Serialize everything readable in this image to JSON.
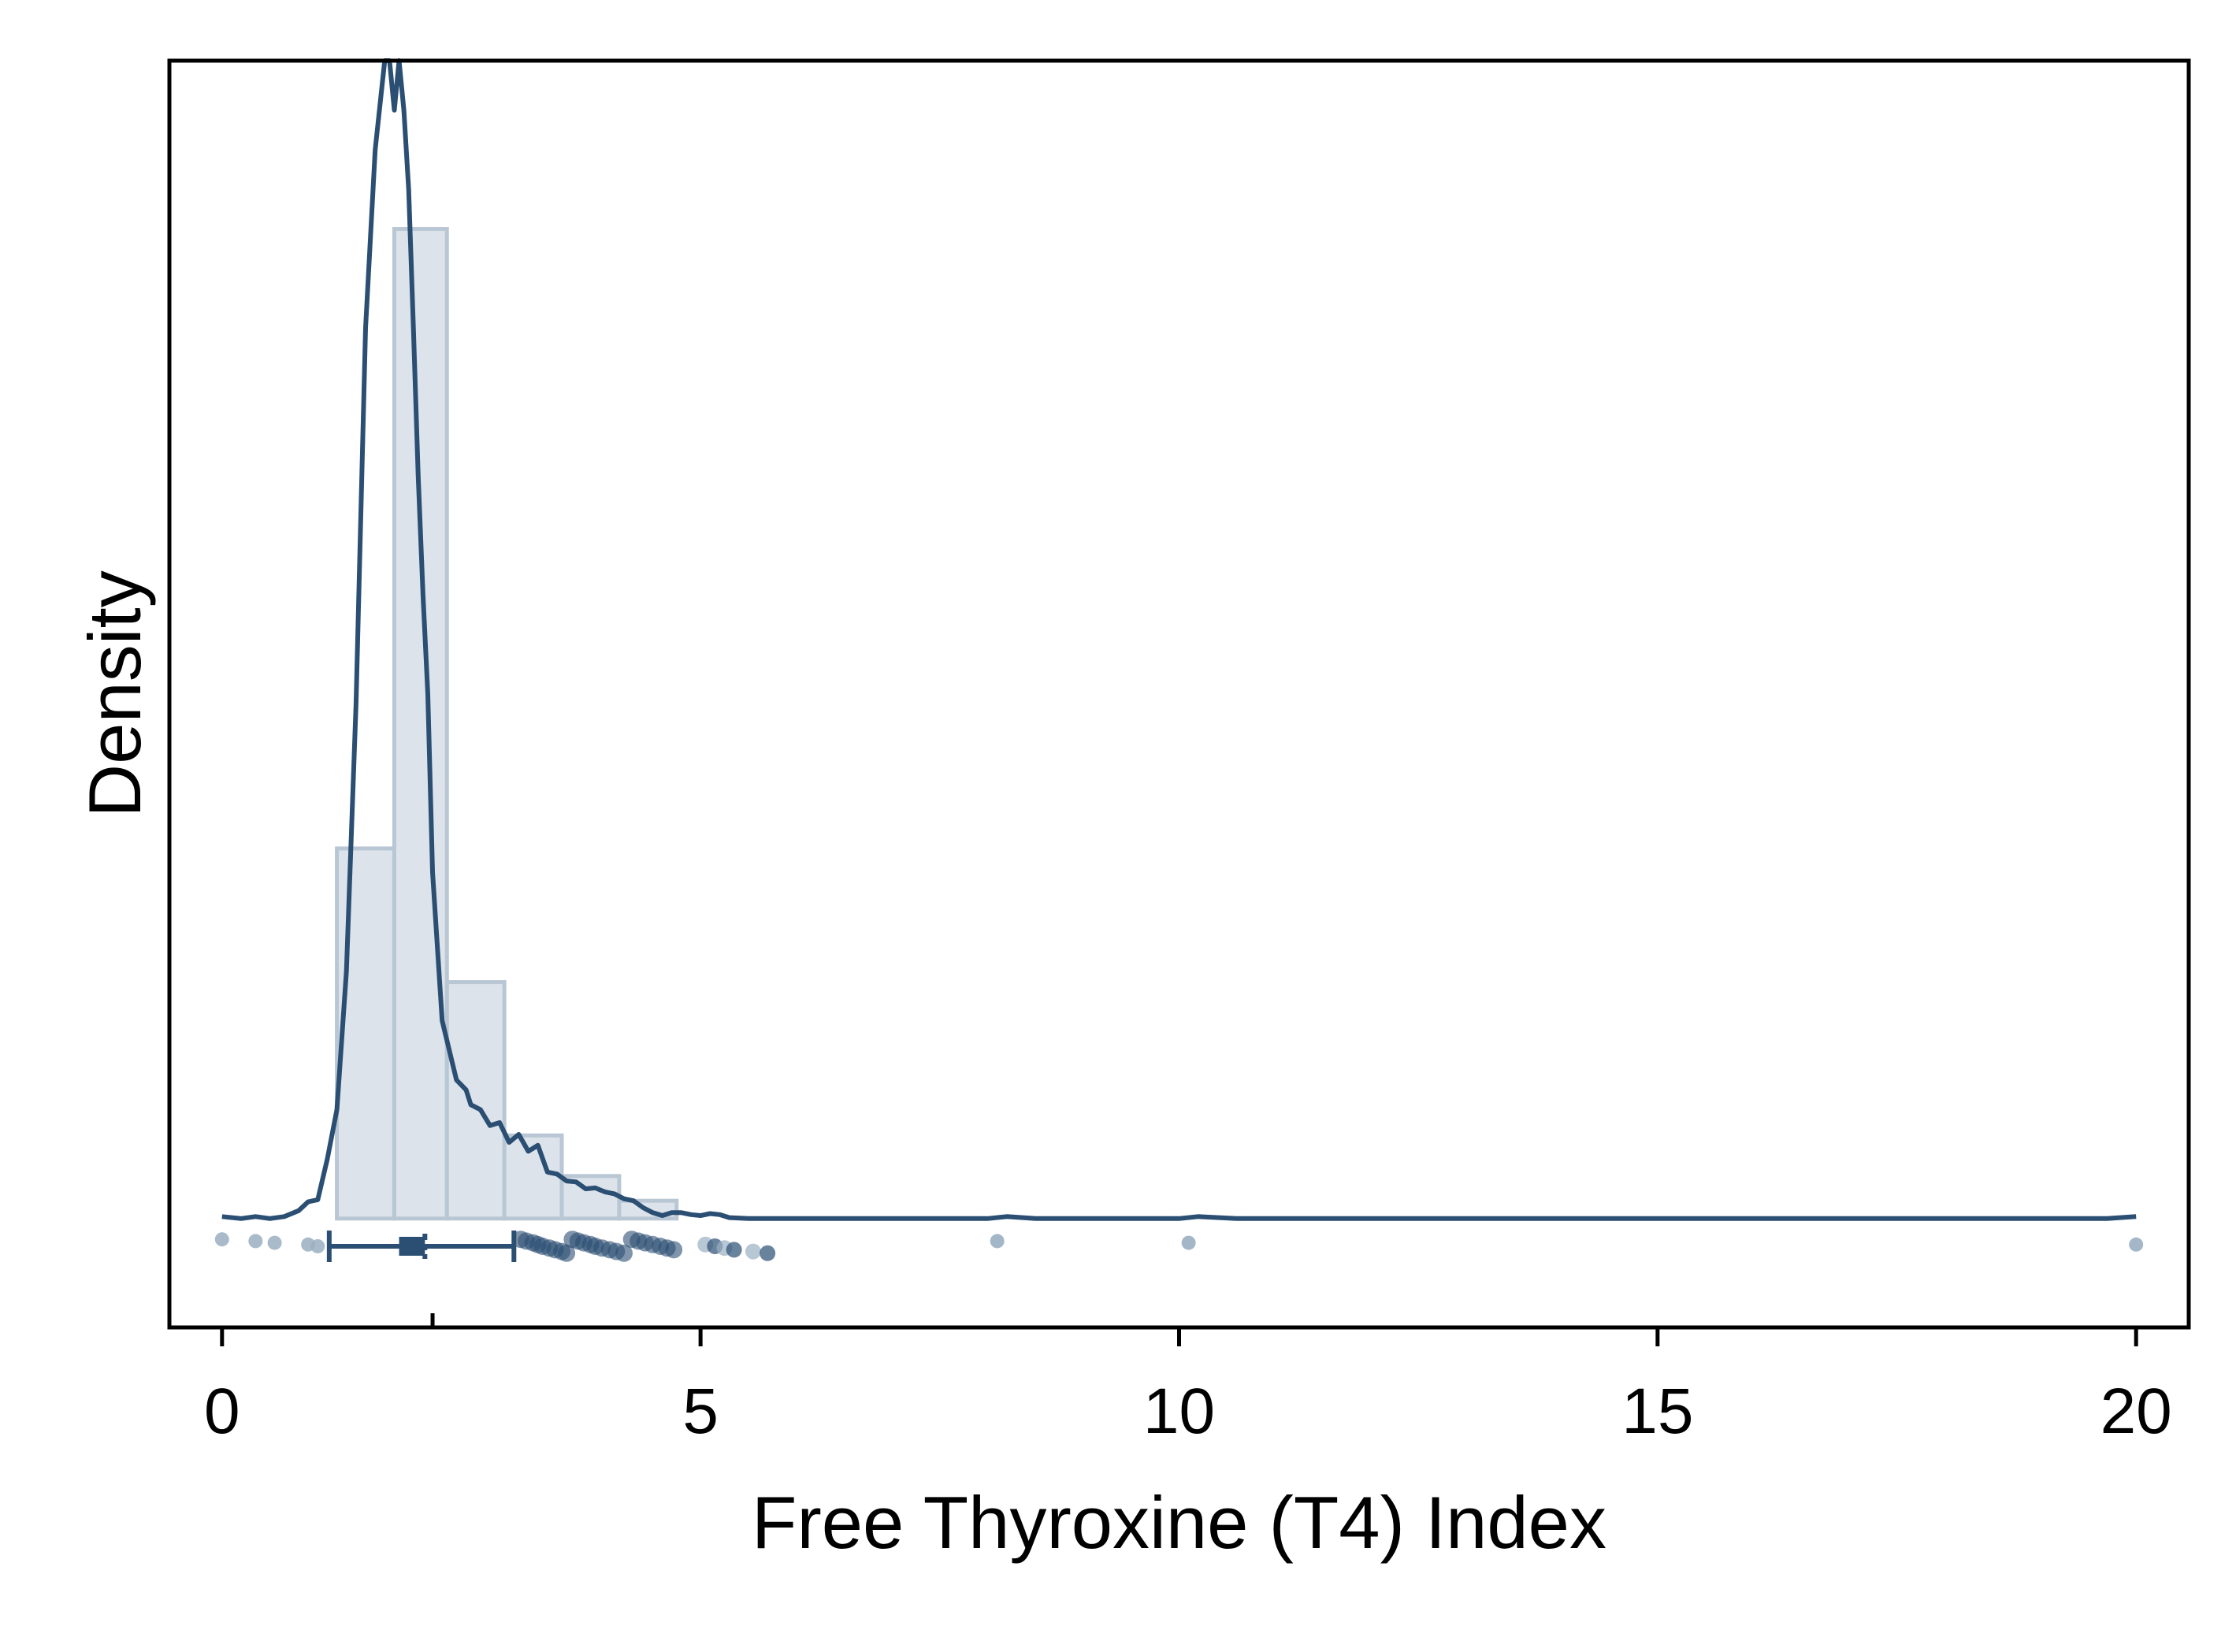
{
  "chart_data": {
    "type": "histogram",
    "title": "",
    "xlabel": "Free Thyroxine (T4) Index",
    "ylabel": "Density",
    "xlim": [
      -0.55,
      20.55
    ],
    "ylim": [
      -0.11,
      1.17
    ],
    "x_ticks": [
      0,
      5,
      10,
      15,
      20
    ],
    "x_tick_labels": [
      "0",
      "5",
      "10",
      "15",
      "20"
    ],
    "minor_tick": 2.2,
    "y_ticks_shown": false,
    "grid": false,
    "legend": "none",
    "colors": {
      "line": "#2b4e73",
      "bar_fill": "#dce3ea",
      "bar_stroke": "#b9c7d4",
      "point_light": "#9aafc2",
      "point_dark": "#2b4e73"
    },
    "histogram": {
      "bin_edges": [
        1.2,
        1.8,
        2.35,
        2.95,
        3.55,
        4.15,
        4.75
      ],
      "heights": [
        0.374,
        1.0,
        0.239,
        0.084,
        0.043,
        0.018
      ]
    },
    "density_curve": {
      "x": [
        0,
        0.2,
        0.35,
        0.5,
        0.65,
        0.8,
        0.9,
        1.0,
        1.1,
        1.2,
        1.3,
        1.4,
        1.5,
        1.6,
        1.7,
        1.75,
        1.8,
        1.85,
        1.9,
        1.95,
        2.0,
        2.05,
        2.1,
        2.15,
        2.2,
        2.3,
        2.4,
        2.45,
        2.5,
        2.55,
        2.6,
        2.7,
        2.8,
        2.9,
        3.0,
        3.1,
        3.2,
        3.3,
        3.4,
        3.5,
        3.6,
        3.7,
        3.8,
        3.9,
        4.0,
        4.1,
        4.2,
        4.3,
        4.4,
        4.5,
        4.6,
        4.7,
        4.8,
        4.9,
        5.0,
        5.1,
        5.2,
        5.3,
        5.5,
        5.6,
        5.7,
        6.0,
        7.0,
        8.0,
        8.2,
        8.5,
        9.5,
        10.0,
        10.2,
        10.6,
        12,
        14,
        16,
        18,
        19.7,
        20
      ],
      "y": [
        0.002,
        0,
        0.002,
        0,
        0.002,
        0.008,
        0.017,
        0.019,
        0.06,
        0.11,
        0.25,
        0.52,
        0.9,
        1.08,
        1.17,
        1.17,
        1.12,
        1.17,
        1.12,
        1.04,
        0.9,
        0.75,
        0.63,
        0.53,
        0.35,
        0.2,
        0.16,
        0.14,
        0.135,
        0.13,
        0.115,
        0.11,
        0.094,
        0.097,
        0.077,
        0.085,
        0.068,
        0.074,
        0.047,
        0.045,
        0.038,
        0.037,
        0.03,
        0.031,
        0.027,
        0.025,
        0.02,
        0.018,
        0.011,
        0.006,
        0.003,
        0.006,
        0.006,
        0.004,
        0.003,
        0.005,
        0.004,
        0.001,
        0,
        0,
        0,
        0,
        0,
        0,
        0.002,
        0,
        0,
        0,
        0.002,
        0,
        0,
        0,
        0,
        0,
        0,
        0.002
      ]
    },
    "boxplot": {
      "y_level": -0.028,
      "whisker_low": 1.12,
      "q1": 1.85,
      "median": 2.12,
      "q3": 3.05,
      "whisker_high": 3.05
    },
    "points": {
      "outliers_low": [
        0.0,
        0.35,
        0.55,
        0.9,
        1.0
      ],
      "upper_cluster": [
        3.12,
        3.18,
        3.25,
        3.3,
        3.35,
        3.42,
        3.48,
        3.55,
        3.6,
        3.66,
        3.72,
        3.78,
        3.85,
        3.9,
        3.97,
        4.05,
        4.12,
        4.2,
        4.28,
        4.35,
        4.42,
        4.5,
        4.58,
        4.65,
        4.72
      ],
      "upper_sparse": [
        5.05,
        5.15,
        5.25,
        5.35,
        5.55,
        5.7
      ],
      "far_outliers": [
        8.1,
        10.1,
        20.0
      ]
    }
  }
}
